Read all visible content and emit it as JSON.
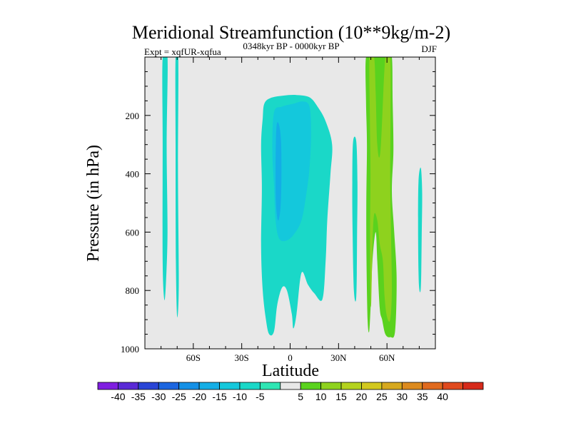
{
  "chart_data": {
    "type": "heatmap",
    "title": "Meridional Streamfunction (10**9kg/m-2)",
    "left_label": "Expt = xqfUR-xqfua",
    "center_label": "0348kyr BP - 0000kyr BP",
    "right_label": "DJF",
    "xlabel": "Latitude",
    "ylabel": "Pressure (in hPa)",
    "xlim": [
      -90,
      90
    ],
    "ylim": [
      1000,
      0
    ],
    "x_ticks": [
      {
        "value": -60,
        "label": "60S"
      },
      {
        "value": -30,
        "label": "30S"
      },
      {
        "value": 0,
        "label": "0"
      },
      {
        "value": 30,
        "label": "30N"
      },
      {
        "value": 60,
        "label": "60N"
      }
    ],
    "y_ticks": [
      {
        "value": 200,
        "label": "200"
      },
      {
        "value": 400,
        "label": "400"
      },
      {
        "value": 600,
        "label": "600"
      },
      {
        "value": 800,
        "label": "800"
      },
      {
        "value": 1000,
        "label": "1000"
      }
    ],
    "background_level": "-5 to 5",
    "levels": [
      -40,
      -35,
      -30,
      -25,
      -20,
      -15,
      -10,
      -5,
      5,
      10,
      15,
      20,
      25,
      30,
      35,
      40
    ],
    "colorbar_colors": [
      "#7f1ee0",
      "#5a2ad6",
      "#2a45d6",
      "#1c66e0",
      "#1490e6",
      "#14aee6",
      "#14c8dc",
      "#1ad8c8",
      "#2ee6b4",
      "#e8e8e8",
      "#5ad21e",
      "#8ed21e",
      "#b4d21e",
      "#d2c81e",
      "#d6a81e",
      "#dc8a1e",
      "#e06a1e",
      "#e04a1e",
      "#d62a1a"
    ],
    "features": [
      {
        "name": "SH high-lat column A",
        "level": "-10 to -5",
        "lat_range": [
          -79,
          -76
        ],
        "p_range": [
          0,
          830
        ]
      },
      {
        "name": "SH high-lat column B",
        "level": "-10 to -5",
        "lat_range": [
          -71,
          -69
        ],
        "p_range": [
          0,
          890
        ]
      },
      {
        "name": "tropical cell",
        "level": "-10 to -5",
        "lat_range": [
          -18,
          26
        ],
        "p_range": [
          130,
          940
        ]
      },
      {
        "name": "tropical cell core",
        "level": "-15 to -10",
        "lat_range": [
          -10,
          12
        ],
        "p_range": [
          150,
          640
        ]
      },
      {
        "name": "tropical cell inner",
        "level": "-20 to -15",
        "lat_range": [
          -9,
          -5
        ],
        "p_range": [
          230,
          560
        ]
      },
      {
        "name": "NH midlat column",
        "level": "-10 to -5",
        "lat_range": [
          38,
          42
        ],
        "p_range": [
          280,
          820
        ]
      },
      {
        "name": "NH positive cell",
        "level": "5 to 10",
        "lat_range": [
          47,
          66
        ],
        "p_range": [
          0,
          950
        ]
      },
      {
        "name": "NH positive core",
        "level": "10 to 15",
        "lat_range": [
          49,
          63
        ],
        "p_range": [
          0,
          900
        ]
      },
      {
        "name": "NH polar column",
        "level": "-10 to -5",
        "lat_range": [
          79,
          82
        ],
        "p_range": [
          380,
          790
        ]
      }
    ]
  }
}
